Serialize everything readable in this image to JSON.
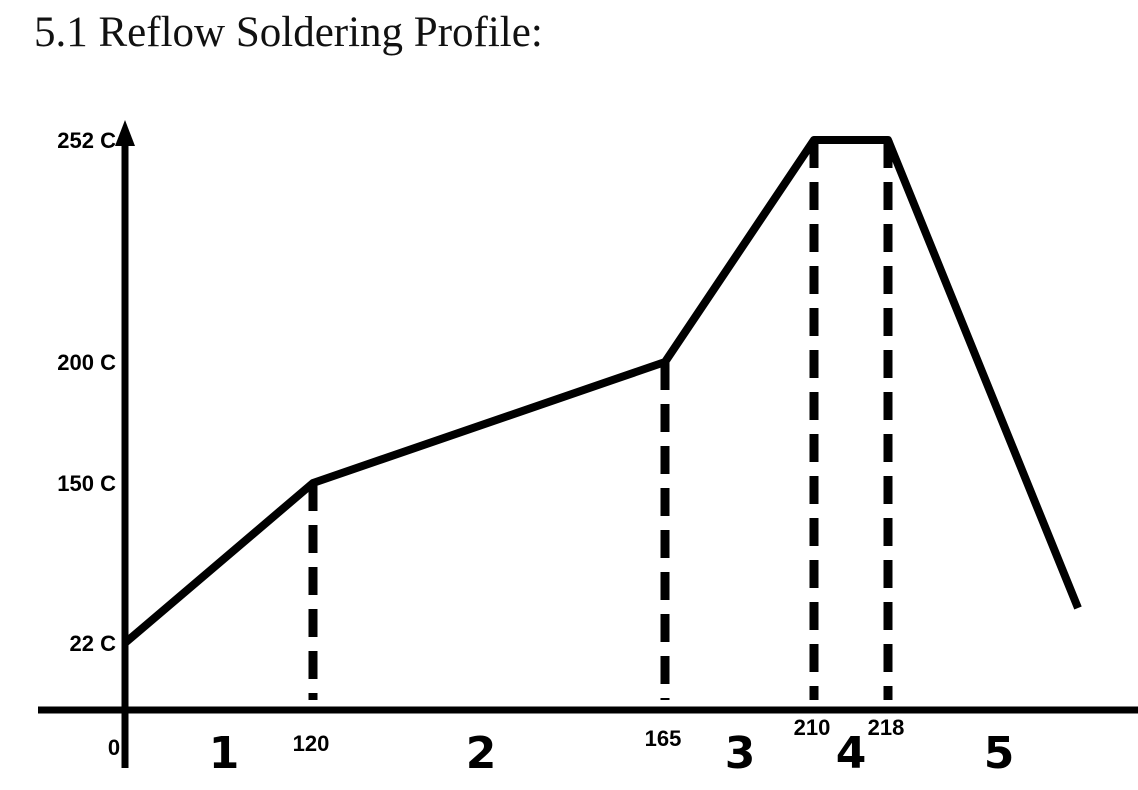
{
  "page": {
    "title": "5.1  Reflow Soldering Profile:"
  },
  "chart_data": {
    "type": "line",
    "title": "5.1  Reflow Soldering Profile:",
    "xlabel": "",
    "ylabel": "",
    "series": [
      {
        "x": [
          0,
          120,
          165,
          210,
          218,
          262
        ],
        "y": [
          22,
          150,
          200,
          252,
          252,
          50
        ]
      }
    ],
    "y_tick_labels": [
      {
        "value": 252,
        "label": "252 C"
      },
      {
        "value": 200,
        "label": "200 C"
      },
      {
        "value": 150,
        "label": "150 C"
      },
      {
        "value": 22,
        "label": "22 C"
      }
    ],
    "x_tick_labels": [
      {
        "value": 0,
        "label": "0"
      },
      {
        "value": 120,
        "label": "120"
      },
      {
        "value": 165,
        "label": "165"
      },
      {
        "value": 210,
        "label": "210"
      },
      {
        "value": 218,
        "label": "218"
      }
    ],
    "zones": [
      {
        "label": "1",
        "x": 60
      },
      {
        "label": "2",
        "x": 142
      },
      {
        "label": "3",
        "x": 187
      },
      {
        "label": "4",
        "x": 214
      },
      {
        "label": "5",
        "x": 240
      }
    ],
    "dashed_verticals": [
      120,
      165,
      210,
      218
    ],
    "grid": false,
    "legend": "none"
  }
}
